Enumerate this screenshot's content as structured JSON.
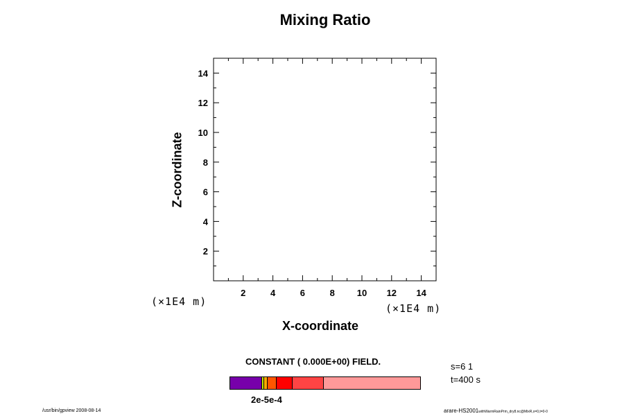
{
  "chart_data": {
    "type": "heatmap",
    "title": "Mixing Ratio",
    "xlabel": "X-coordinate",
    "ylabel": "Z-coordinate",
    "x_unit": "(×1E4 m)",
    "y_unit": "(×1E4 m)",
    "xlim": [
      0,
      15
    ],
    "ylim": [
      0,
      15
    ],
    "xticks": [
      2,
      4,
      6,
      8,
      10,
      12,
      14
    ],
    "yticks": [
      2,
      4,
      6,
      8,
      10,
      12,
      14
    ],
    "field_note": "CONSTANT ( 0.000E+00) FIELD.",
    "colorbar": {
      "label": "2e-5e-4",
      "colors": [
        "#7700aa",
        "#ccee00",
        "#ffaa00",
        "#ff5500",
        "#ff0000",
        "#ff4444",
        "#ff9999"
      ],
      "fractions": [
        0.167,
        0.011,
        0.018,
        0.047,
        0.084,
        0.167,
        0.506
      ]
    }
  },
  "info": {
    "s": "s=6 1",
    "t": "t=400 s"
  },
  "footer": {
    "left": "/usr/bin/gpview 2008-08-14",
    "right_main": "arare-HS2001",
    "right_sub": "withWarmRainPrm_dry8.nc@MixR,x=0,t=0-0"
  }
}
